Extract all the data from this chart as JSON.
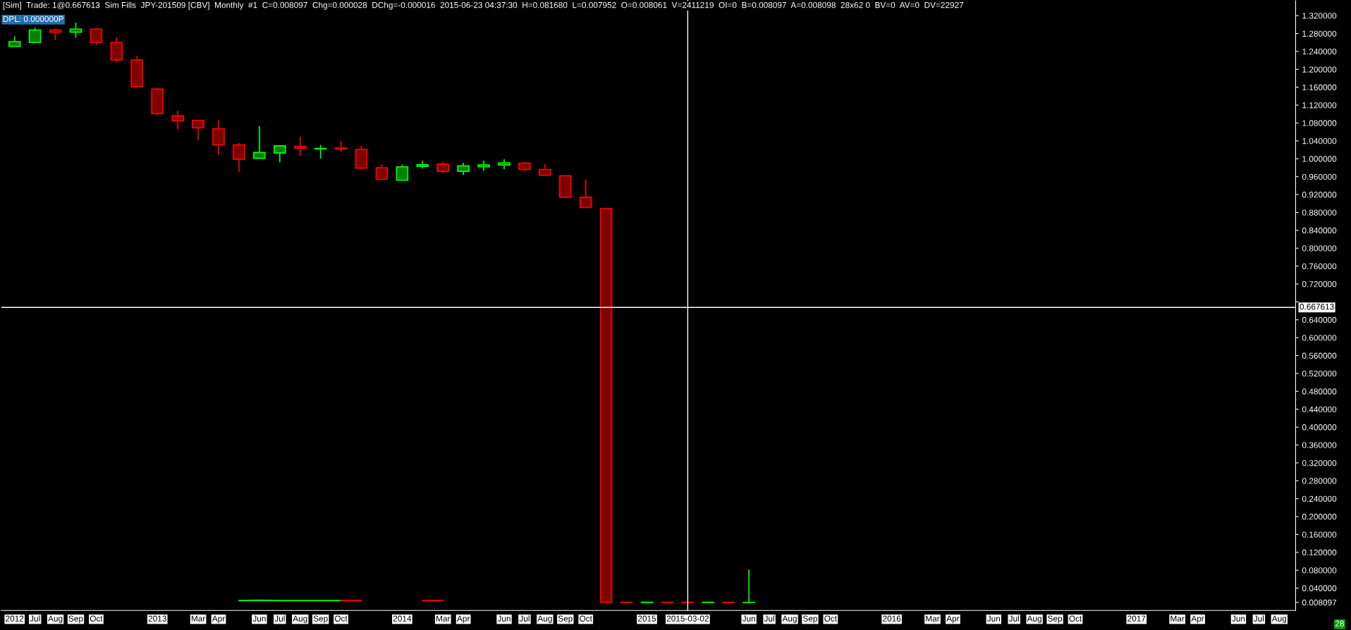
{
  "chart_data": {
    "type": "candlestick",
    "title": "[Sim]  Trade: 1@0.667613  Sim Fills  JPY-201509 [CBV]  Monthly  #1  C=0.008097  Chg=0.000028  DChg=-0.000016  2015-06-23 04:37:30  H=0.081680  L=0.007952  O=0.008061  V=2411219  OI=0  B=0.008097  A=0.008098  28x62 0  BV=0  AV=0  DV=22927",
    "subtitle": "DPL: 0.000000P",
    "annotations": [
      "28"
    ],
    "categories": [
      "2012",
      "Jul",
      "Aug",
      "Sep",
      "Oct",
      null,
      null,
      "2013",
      null,
      "Mar",
      "Apr",
      null,
      "Jun",
      "Jul",
      "Aug",
      "Sep",
      "Oct",
      null,
      null,
      "2014",
      null,
      "Mar",
      "Apr",
      null,
      "Jun",
      "Jul",
      "Aug",
      "Sep",
      "Oct",
      null,
      null,
      "2015",
      null,
      "2015-03-02",
      null,
      null,
      "Jun",
      "Jul",
      "Aug",
      "Sep",
      "Oct",
      null,
      null,
      "2016",
      null,
      "Mar",
      "Apr",
      null,
      "Jun",
      "Jul",
      "Aug",
      "Sep",
      "Oct",
      null,
      null,
      "2017",
      null,
      "Mar",
      "Apr",
      null,
      "Jun",
      "Jul",
      "Aug"
    ],
    "ohlc": [
      [
        1.251,
        1.274,
        1.251,
        1.262
      ],
      [
        1.26,
        1.293,
        1.258,
        1.288
      ],
      [
        1.288,
        1.291,
        1.265,
        1.283
      ],
      [
        1.283,
        1.304,
        1.271,
        1.29
      ],
      [
        1.29,
        1.293,
        1.253,
        1.26
      ],
      [
        1.26,
        1.271,
        1.216,
        1.221
      ],
      [
        1.221,
        1.23,
        1.159,
        1.161
      ],
      [
        1.156,
        1.158,
        1.097,
        1.101
      ],
      [
        1.096,
        1.107,
        1.065,
        1.085
      ],
      [
        1.086,
        1.087,
        1.042,
        1.069
      ],
      [
        1.067,
        1.087,
        1.008,
        1.031
      ],
      [
        1.031,
        1.035,
        0.97,
        0.999
      ],
      [
        1.001,
        1.073,
        1.001,
        1.014
      ],
      [
        1.013,
        1.03,
        0.992,
        1.029
      ],
      [
        1.028,
        1.049,
        1.006,
        1.024
      ],
      [
        1.022,
        1.031,
        1.0,
        1.023
      ],
      [
        1.024,
        1.04,
        1.015,
        1.022
      ],
      [
        1.021,
        1.029,
        0.979,
        0.979
      ],
      [
        0.98,
        0.988,
        0.954,
        0.954
      ],
      [
        0.952,
        0.987,
        0.952,
        0.982
      ],
      [
        0.983,
        0.996,
        0.978,
        0.987
      ],
      [
        0.988,
        0.993,
        0.968,
        0.972
      ],
      [
        0.972,
        0.991,
        0.964,
        0.984
      ],
      [
        0.982,
        0.996,
        0.973,
        0.986
      ],
      [
        0.986,
        0.999,
        0.977,
        0.991
      ],
      [
        0.99,
        0.993,
        0.973,
        0.976
      ],
      [
        0.976,
        0.988,
        0.963,
        0.963
      ],
      [
        0.962,
        0.962,
        0.914,
        0.914
      ],
      [
        0.914,
        0.954,
        0.891,
        0.891
      ],
      [
        0.889,
        0.889,
        0.0083,
        0.0083
      ],
      [
        0.0083,
        0.0083,
        0.0081,
        0.0081
      ],
      [
        0.0081,
        0.0083,
        0.0081,
        0.0083
      ],
      [
        0.0083,
        0.0083,
        0.0081,
        0.0081
      ],
      [
        0.0083,
        0.0083,
        0.0081,
        0.0081
      ],
      [
        0.0081,
        0.0083,
        0.0081,
        0.0083
      ],
      [
        0.0083,
        0.0083,
        0.0081,
        0.0081
      ],
      [
        0.008061,
        0.08168,
        0.007952,
        0.008097
      ],
      null,
      null,
      null,
      null,
      null,
      null,
      null,
      null,
      null,
      null,
      null,
      null,
      null,
      null,
      null,
      null,
      null,
      null,
      null,
      null,
      null,
      null,
      null,
      null,
      null,
      null
    ],
    "colors": [
      "#00ff00",
      "#00ff00",
      "#ff0000",
      "#00ff00",
      "#ff0000",
      "#ff0000",
      "#ff0000",
      "#ff0000",
      "#ff0000",
      "#ff0000",
      "#ff0000",
      "#ff0000",
      "#00ff00",
      "#00ff00",
      "#ff0000",
      "#00ff00",
      "#ff0000",
      "#ff0000",
      "#ff0000",
      "#00ff00",
      "#00ff00",
      "#ff0000",
      "#00ff00",
      "#00ff00",
      "#00ff00",
      "#ff0000",
      "#ff0000",
      "#ff0000",
      "#ff0000",
      "#ff0000",
      "#ff0000",
      "#00ff00",
      "#ff0000",
      "#ff0000",
      "#00ff00",
      "#ff0000",
      "#00ff00",
      null,
      null,
      null,
      null,
      null,
      null,
      null,
      null,
      null,
      null,
      null,
      null,
      null,
      null,
      null,
      null,
      null,
      null,
      null,
      null,
      null,
      null,
      null,
      null,
      null,
      null
    ],
    "series": [
      {
        "type": "line",
        "color": "#00ff00",
        "values": [
          null,
          null,
          null,
          null,
          null,
          null,
          null,
          null,
          null,
          null,
          null,
          0.012,
          0.013,
          0.012,
          0.012,
          0.012,
          0.012,
          null,
          null,
          null,
          null,
          null,
          null,
          null,
          null,
          null,
          null,
          null,
          null,
          null,
          null,
          null,
          null,
          null,
          null,
          null,
          null,
          null,
          null,
          null,
          null,
          null,
          null,
          null,
          null,
          null,
          null,
          null,
          null,
          null,
          null,
          null,
          null,
          null,
          null,
          null,
          null,
          null,
          null,
          null,
          null,
          null,
          null
        ]
      },
      {
        "type": "line",
        "color": "#ff0000",
        "values": [
          null,
          null,
          null,
          null,
          null,
          null,
          null,
          null,
          null,
          null,
          null,
          null,
          null,
          null,
          null,
          null,
          0.012,
          0.012,
          null,
          null,
          0.012,
          0.012,
          null,
          null,
          null,
          null,
          null,
          null,
          null,
          null,
          null,
          null,
          null,
          null,
          null,
          null,
          null,
          null,
          null,
          null,
          null,
          null,
          null,
          null,
          null,
          null,
          null,
          null,
          null,
          null,
          null,
          null,
          null,
          null,
          null,
          null,
          null,
          null,
          null,
          null,
          null,
          null,
          null
        ]
      }
    ],
    "ylim": [
      -0.01,
      1.355
    ],
    "yticks": [
      {
        "value": 0.008097,
        "label": "0.008097"
      },
      {
        "value": 0.04,
        "label": "0.040000"
      },
      {
        "value": 0.08,
        "label": "0.080000"
      },
      {
        "value": 0.12,
        "label": "0.120000"
      },
      {
        "value": 0.16,
        "label": "0.160000"
      },
      {
        "value": 0.2,
        "label": "0.200000"
      },
      {
        "value": 0.24,
        "label": "0.240000"
      },
      {
        "value": 0.28,
        "label": "0.280000"
      },
      {
        "value": 0.32,
        "label": "0.320000"
      },
      {
        "value": 0.36,
        "label": "0.360000"
      },
      {
        "value": 0.4,
        "label": "0.400000"
      },
      {
        "value": 0.44,
        "label": "0.440000"
      },
      {
        "value": 0.48,
        "label": "0.480000"
      },
      {
        "value": 0.52,
        "label": "0.520000"
      },
      {
        "value": 0.56,
        "label": "0.560000"
      },
      {
        "value": 0.6,
        "label": "0.600000"
      },
      {
        "value": 0.64,
        "label": "0.640000"
      },
      {
        "value": 0.68,
        "label": null
      },
      {
        "value": 0.72,
        "label": "0.720000"
      },
      {
        "value": 0.76,
        "label": "0.760000"
      },
      {
        "value": 0.8,
        "label": "0.800000"
      },
      {
        "value": 0.84,
        "label": "0.840000"
      },
      {
        "value": 0.88,
        "label": "0.880000"
      },
      {
        "value": 0.92,
        "label": "0.920000"
      },
      {
        "value": 0.96,
        "label": "0.960000"
      },
      {
        "value": 1.0,
        "label": "1.000000"
      },
      {
        "value": 1.04,
        "label": "1.040000"
      },
      {
        "value": 1.08,
        "label": "1.080000"
      },
      {
        "value": 1.12,
        "label": "1.120000"
      },
      {
        "value": 1.16,
        "label": "1.160000"
      },
      {
        "value": 1.2,
        "label": "1.200000"
      },
      {
        "value": 1.24,
        "label": "1.240000"
      },
      {
        "value": 1.28,
        "label": "1.280000"
      },
      {
        "value": 1.32,
        "label": "1.320000"
      }
    ],
    "ref_lines": [
      {
        "axis": "y",
        "value": 0.667613,
        "label": "0.667613",
        "color": "#ffffff"
      },
      {
        "axis": "x",
        "value": "2015-03-02",
        "color": "#ffffff"
      }
    ],
    "grid": false,
    "legend": false
  }
}
